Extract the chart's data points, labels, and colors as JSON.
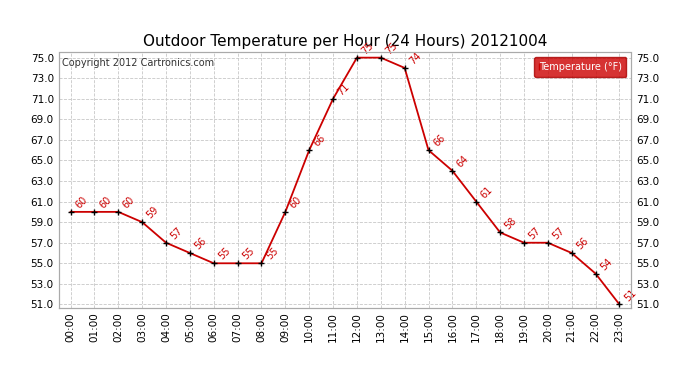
{
  "title": "Outdoor Temperature per Hour (24 Hours) 20121004",
  "copyright": "Copyright 2012 Cartronics.com",
  "hours": [
    "00:00",
    "01:00",
    "02:00",
    "03:00",
    "04:00",
    "05:00",
    "06:00",
    "07:00",
    "08:00",
    "09:00",
    "10:00",
    "11:00",
    "12:00",
    "13:00",
    "14:00",
    "15:00",
    "16:00",
    "17:00",
    "18:00",
    "19:00",
    "20:00",
    "21:00",
    "22:00",
    "23:00"
  ],
  "temps": [
    60,
    60,
    60,
    59,
    57,
    56,
    55,
    55,
    55,
    60,
    66,
    71,
    75,
    75,
    74,
    66,
    64,
    61,
    58,
    57,
    57,
    56,
    54,
    51
  ],
  "ylim_min": 51.0,
  "ylim_max": 75.0,
  "yticks": [
    51.0,
    53.0,
    55.0,
    57.0,
    59.0,
    61.0,
    63.0,
    65.0,
    67.0,
    69.0,
    71.0,
    73.0,
    75.0
  ],
  "line_color": "#cc0000",
  "marker_color": "#000000",
  "label_color": "#cc0000",
  "bg_color": "#ffffff",
  "grid_color": "#c8c8c8",
  "legend_text": "Temperature (°F)",
  "legend_bg": "#cc0000",
  "legend_fg": "#ffffff",
  "title_fontsize": 11,
  "copyright_fontsize": 7,
  "label_fontsize": 7,
  "tick_fontsize": 7.5
}
